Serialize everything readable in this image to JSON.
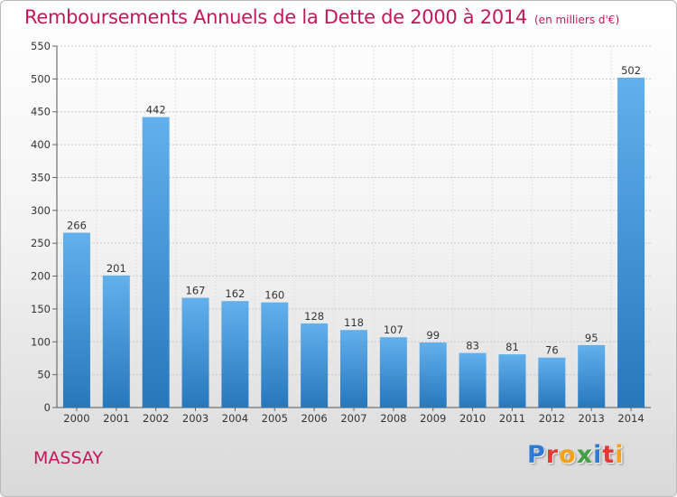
{
  "header": {
    "title": "Remboursements Annuels de la Dette de 2000 à 2014",
    "unit": "(en milliers d'€)"
  },
  "footer": {
    "city": "MASSAY",
    "logo_letters": [
      "P",
      "r",
      "o",
      "x",
      "i",
      "t",
      "i"
    ],
    "logo_colors": [
      "#2e7bd6",
      "#e53935",
      "#f4a21b",
      "#43a047",
      "#2e7bd6",
      "#e53935",
      "#f4a21b"
    ]
  },
  "colors": {
    "title": "#c2185b",
    "bar_light": "#62b0ec",
    "bar_dark": "#2777bd"
  },
  "chart_data": {
    "type": "bar",
    "categories": [
      "2000",
      "2001",
      "2002",
      "2003",
      "2004",
      "2005",
      "2006",
      "2007",
      "2008",
      "2009",
      "2010",
      "2011",
      "2012",
      "2013",
      "2014"
    ],
    "values": [
      266,
      201,
      442,
      167,
      162,
      160,
      128,
      118,
      107,
      99,
      83,
      81,
      76,
      95,
      502
    ],
    "ylim": [
      0,
      550
    ],
    "yticks": [
      0,
      50,
      100,
      150,
      200,
      250,
      300,
      350,
      400,
      450,
      500,
      550
    ],
    "grid": true,
    "data_labels": true
  }
}
